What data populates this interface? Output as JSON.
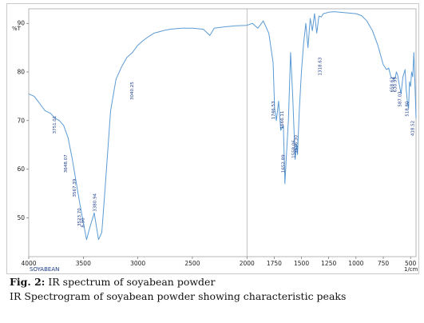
{
  "chart_data": {
    "type": "line",
    "title": "",
    "ylabel": "%T",
    "xlabel": "1/cm",
    "xlim": [
      4000,
      450
    ],
    "ylim": [
      42,
      93
    ],
    "x_ticks": [
      4000,
      3500,
      3000,
      2500,
      2000,
      1750,
      1500,
      1250,
      1000,
      750,
      500
    ],
    "y_ticks": [
      50,
      60,
      70,
      80,
      90
    ],
    "grid": false,
    "sample_label": "SOYABEAN",
    "series": [
      {
        "color": "#5b9bd5",
        "x": [
          4000,
          3950,
          3900,
          3850,
          3800,
          3760,
          3720,
          3680,
          3640,
          3600,
          3570,
          3540,
          3500,
          3470,
          3440,
          3400,
          3360,
          3330,
          3300,
          3250,
          3200,
          3150,
          3100,
          3050,
          3000,
          2950,
          2900,
          2850,
          2800,
          2750,
          2700,
          2600,
          2500,
          2400,
          2340,
          2300,
          2200,
          2100,
          2000,
          1950,
          1900,
          1850,
          1800,
          1780,
          1760,
          1746,
          1730,
          1710,
          1690,
          1666,
          1652,
          1640,
          1620,
          1600,
          1580,
          1558,
          1545,
          1536,
          1520,
          1500,
          1480,
          1460,
          1440,
          1420,
          1400,
          1380,
          1360,
          1340,
          1318,
          1300,
          1250,
          1200,
          1150,
          1100,
          1050,
          1000,
          950,
          900,
          850,
          800,
          750,
          720,
          700,
          680,
          658,
          640,
          630,
          620,
          600,
          587,
          570,
          550,
          540,
          530,
          518,
          510,
          500,
          490,
          480,
          470,
          460,
          450
        ],
        "y": [
          75.5,
          75,
          73.5,
          72,
          71.5,
          70.5,
          70,
          69,
          66.5,
          62,
          58,
          54,
          49,
          45.5,
          48,
          51,
          45.5,
          47,
          56,
          72,
          78.5,
          81,
          83,
          84,
          85.5,
          86.5,
          87.3,
          88,
          88.3,
          88.6,
          88.8,
          89,
          89,
          88.8,
          87.5,
          89,
          89.3,
          89.5,
          89.6,
          90,
          89,
          90.5,
          88,
          85,
          82,
          72.5,
          70,
          74,
          68,
          69,
          57,
          62,
          70,
          84,
          75,
          62,
          65,
          63,
          72,
          80,
          86,
          90,
          85,
          91,
          88.5,
          92,
          88,
          91.5,
          91.3,
          92,
          92.3,
          92.4,
          92.3,
          92.2,
          92.1,
          92,
          91.6,
          90.5,
          88.5,
          85.5,
          81.5,
          80.5,
          80.8,
          79,
          78.5,
          78.8,
          80,
          79.5,
          77,
          75.5,
          79,
          80.5,
          76.5,
          74,
          72.5,
          78,
          77,
          80,
          79,
          84,
          78,
          70.5
        ]
      }
    ],
    "peak_labels": [
      {
        "x": 3751,
        "y": 71,
        "text": "3751.01"
      },
      {
        "x": 3648,
        "y": 63,
        "text": "3648.07"
      },
      {
        "x": 3567,
        "y": 58,
        "text": "3567.39"
      },
      {
        "x": 3523,
        "y": 52,
        "text": "3523.70"
      },
      {
        "x": 3490,
        "y": 50,
        "text": "8.90"
      },
      {
        "x": 3380,
        "y": 55,
        "text": "3380.94"
      },
      {
        "x": 3040,
        "y": 78,
        "text": "3040.25"
      },
      {
        "x": 1746,
        "y": 74,
        "text": "1746.53"
      },
      {
        "x": 1666,
        "y": 72,
        "text": "1666.11"
      },
      {
        "x": 1652,
        "y": 63,
        "text": "1652.89"
      },
      {
        "x": 1558,
        "y": 66,
        "text": "1558.06"
      },
      {
        "x": 1536,
        "y": 67,
        "text": "1536.30"
      },
      {
        "x": 1318,
        "y": 83,
        "text": "1318.63"
      },
      {
        "x": 658,
        "y": 79,
        "text": "658.61"
      },
      {
        "x": 630,
        "y": 79,
        "text": "630.99"
      },
      {
        "x": 587,
        "y": 76,
        "text": "587.03"
      },
      {
        "x": 518,
        "y": 74,
        "text": "518.80"
      },
      {
        "x": 470,
        "y": 70,
        "text": "418.52"
      }
    ]
  },
  "caption": {
    "fig_label": "Fig. 2:",
    "fig_title": " IR spectrum of soyabean powder",
    "subtitle": "IR Spectrogram of soyabean powder showing characteristic peaks"
  }
}
